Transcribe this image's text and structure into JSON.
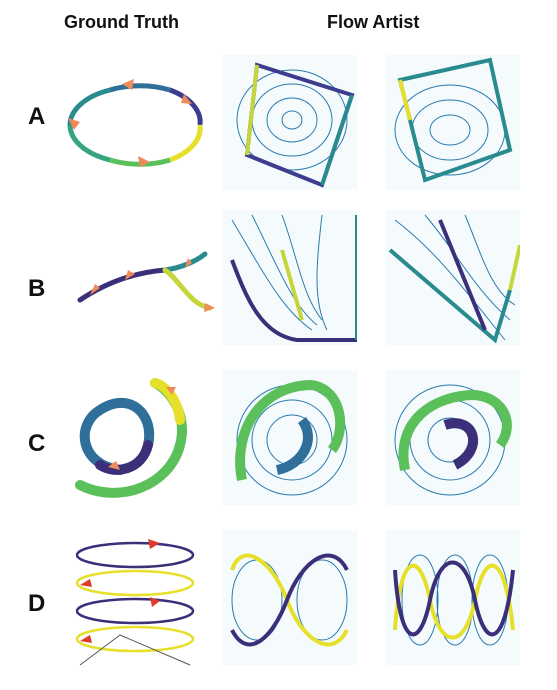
{
  "headers": {
    "ground_truth": "Ground Truth",
    "flow_artist": "Flow Artist"
  },
  "rows": [
    {
      "label": "A"
    },
    {
      "label": "B"
    },
    {
      "label": "C"
    },
    {
      "label": "D"
    }
  ]
}
